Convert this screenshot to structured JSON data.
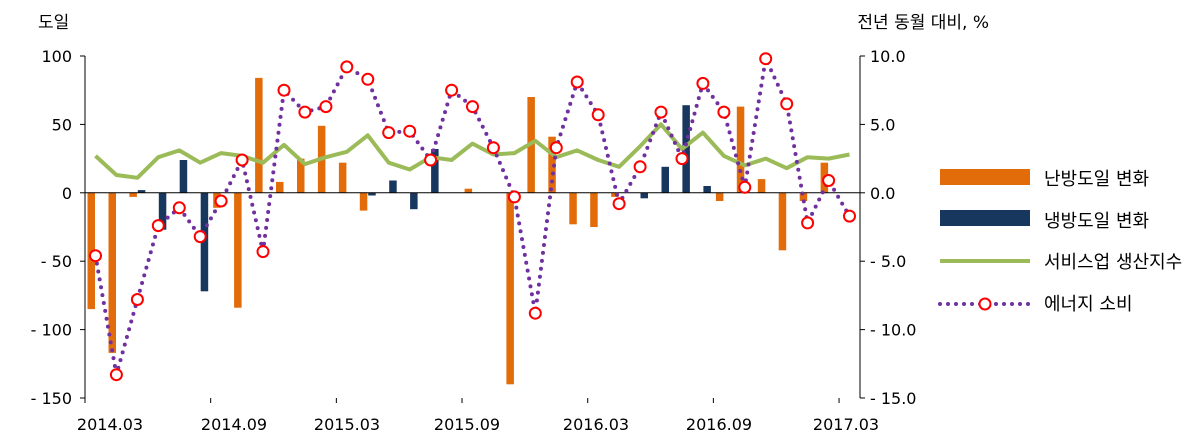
{
  "chart_data": {
    "type": "bar",
    "left_axis_label": "도일",
    "right_axis_label": "전년 동월 대비, %",
    "left_ticks": [
      "100",
      "50",
      "0",
      "- 50",
      "- 100",
      "- 150"
    ],
    "left_ylim": [
      -150,
      100
    ],
    "right_ticks": [
      "10.0",
      "5.0",
      "0.0",
      "- 5.0",
      "- 10.0",
      "- 15.0"
    ],
    "right_ylim": [
      -15,
      10
    ],
    "x_ticks": [
      "2014.03",
      "2014.09",
      "2015.03",
      "2015.09",
      "2016.03",
      "2016.09",
      "2017.03"
    ],
    "x": [
      "2014.03",
      "2014.04",
      "2014.05",
      "2014.06",
      "2014.07",
      "2014.08",
      "2014.09",
      "2014.10",
      "2014.11",
      "2014.12",
      "2015.01",
      "2015.02",
      "2015.03",
      "2015.04",
      "2015.05",
      "2015.06",
      "2015.07",
      "2015.08",
      "2015.09",
      "2015.10",
      "2015.11",
      "2015.12",
      "2016.01",
      "2016.02",
      "2016.03",
      "2016.04",
      "2016.05",
      "2016.06",
      "2016.07",
      "2016.08",
      "2016.09",
      "2016.10",
      "2016.11",
      "2016.12",
      "2017.01",
      "2017.02",
      "2017.03"
    ],
    "legend_position": "right",
    "series": [
      {
        "name": "난방도일 변화",
        "kind": "bar",
        "axis": "left",
        "color": "#E36C0A",
        "values": [
          -85,
          -117,
          -3,
          0,
          0,
          0,
          -11,
          -84,
          84,
          8,
          25,
          49,
          22,
          -13,
          0,
          0,
          0,
          0,
          3,
          0,
          -140,
          70,
          41,
          -23,
          -25,
          -3,
          0,
          0,
          0,
          0,
          -6,
          63,
          10,
          -42,
          -6,
          22,
          0
        ]
      },
      {
        "name": "냉방도일 변화",
        "kind": "bar",
        "axis": "left",
        "color": "#17375E",
        "values": [
          0,
          0,
          2,
          -27,
          24,
          -72,
          0,
          0,
          0,
          0,
          0,
          0,
          0,
          -2,
          9,
          -12,
          32,
          0,
          0,
          0,
          0,
          0,
          0,
          0,
          0,
          0,
          -4,
          19,
          64,
          5,
          0,
          0,
          0,
          0,
          0,
          0,
          0
        ]
      },
      {
        "name": "서비스업 생산지수",
        "kind": "line",
        "axis": "right",
        "color": "#9BBB59",
        "values": [
          2.7,
          1.3,
          1.1,
          2.6,
          3.1,
          2.2,
          2.9,
          2.7,
          2.2,
          3.5,
          2.1,
          2.6,
          3.0,
          4.2,
          2.2,
          1.7,
          2.6,
          2.4,
          3.6,
          2.8,
          2.9,
          3.8,
          2.6,
          3.1,
          2.4,
          1.9,
          3.4,
          5.0,
          3.2,
          4.4,
          2.7,
          2.0,
          2.5,
          1.8,
          2.6,
          2.5,
          2.8
        ]
      },
      {
        "name": "에너지 소비",
        "kind": "line-dotted-markers",
        "axis": "right",
        "color": "#7030A0",
        "marker_color": "#FF0000",
        "values": [
          -4.6,
          -13.3,
          -7.8,
          -2.4,
          -1.1,
          -3.2,
          -0.6,
          2.4,
          -4.3,
          7.5,
          5.9,
          6.3,
          9.2,
          8.3,
          4.4,
          4.5,
          2.4,
          7.5,
          6.3,
          3.3,
          -0.3,
          -8.8,
          3.3,
          8.1,
          5.7,
          -0.8,
          1.9,
          5.9,
          2.5,
          8.0,
          5.9,
          0.4,
          9.8,
          6.5,
          -2.2,
          0.9,
          -1.7
        ]
      }
    ]
  }
}
